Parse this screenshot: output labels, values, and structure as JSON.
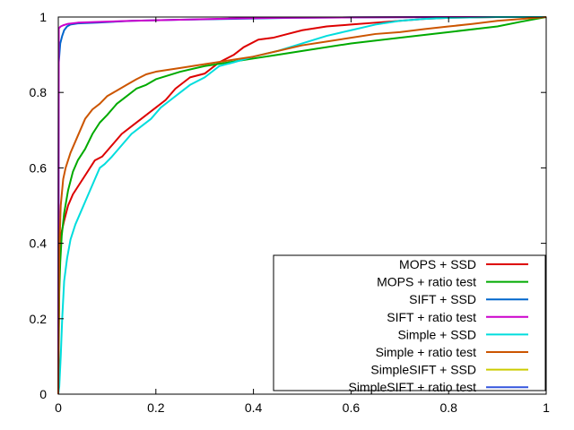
{
  "chart_data": {
    "type": "line",
    "title": "",
    "xlabel": "",
    "ylabel": "",
    "xlim": [
      0,
      1
    ],
    "ylim": [
      0,
      1
    ],
    "xticks": [
      {
        "value": 0,
        "label": "0"
      },
      {
        "value": 0.2,
        "label": "0.2"
      },
      {
        "value": 0.4,
        "label": "0.4"
      },
      {
        "value": 0.6,
        "label": "0.6"
      },
      {
        "value": 0.8,
        "label": "0.8"
      },
      {
        "value": 1,
        "label": "1"
      }
    ],
    "yticks": [
      {
        "value": 0,
        "label": "0"
      },
      {
        "value": 0.2,
        "label": "0.2"
      },
      {
        "value": 0.4,
        "label": "0.4"
      },
      {
        "value": 0.6,
        "label": "0.6"
      },
      {
        "value": 0.8,
        "label": "0.8"
      },
      {
        "value": 1,
        "label": "1"
      }
    ],
    "grid": false,
    "legend_position": "bottom-right",
    "series": [
      {
        "name": "MOPS + SSD",
        "color": "#dd0000",
        "points": [
          [
            0,
            0
          ],
          [
            0.002,
            0.38
          ],
          [
            0.005,
            0.42
          ],
          [
            0.012,
            0.46
          ],
          [
            0.02,
            0.5
          ],
          [
            0.03,
            0.53
          ],
          [
            0.045,
            0.56
          ],
          [
            0.06,
            0.59
          ],
          [
            0.075,
            0.62
          ],
          [
            0.09,
            0.63
          ],
          [
            0.11,
            0.66
          ],
          [
            0.13,
            0.69
          ],
          [
            0.15,
            0.71
          ],
          [
            0.17,
            0.73
          ],
          [
            0.2,
            0.76
          ],
          [
            0.22,
            0.78
          ],
          [
            0.24,
            0.81
          ],
          [
            0.27,
            0.84
          ],
          [
            0.3,
            0.85
          ],
          [
            0.33,
            0.88
          ],
          [
            0.36,
            0.9
          ],
          [
            0.38,
            0.92
          ],
          [
            0.41,
            0.94
          ],
          [
            0.44,
            0.945
          ],
          [
            0.47,
            0.955
          ],
          [
            0.5,
            0.965
          ],
          [
            0.55,
            0.975
          ],
          [
            0.6,
            0.98
          ],
          [
            0.65,
            0.985
          ],
          [
            0.7,
            0.99
          ],
          [
            0.75,
            0.995
          ],
          [
            0.8,
            0.998
          ],
          [
            0.9,
            1.0
          ],
          [
            1.0,
            1.0
          ]
        ]
      },
      {
        "name": "MOPS + ratio test",
        "color": "#00aa00",
        "points": [
          [
            0,
            0
          ],
          [
            0.002,
            0.27
          ],
          [
            0.004,
            0.35
          ],
          [
            0.007,
            0.42
          ],
          [
            0.012,
            0.48
          ],
          [
            0.02,
            0.54
          ],
          [
            0.03,
            0.59
          ],
          [
            0.04,
            0.62
          ],
          [
            0.055,
            0.65
          ],
          [
            0.07,
            0.69
          ],
          [
            0.085,
            0.72
          ],
          [
            0.1,
            0.74
          ],
          [
            0.12,
            0.77
          ],
          [
            0.14,
            0.79
          ],
          [
            0.16,
            0.81
          ],
          [
            0.18,
            0.82
          ],
          [
            0.2,
            0.835
          ],
          [
            0.25,
            0.855
          ],
          [
            0.3,
            0.87
          ],
          [
            0.35,
            0.88
          ],
          [
            0.4,
            0.89
          ],
          [
            0.45,
            0.9
          ],
          [
            0.5,
            0.91
          ],
          [
            0.6,
            0.93
          ],
          [
            0.7,
            0.945
          ],
          [
            0.8,
            0.96
          ],
          [
            0.9,
            0.975
          ],
          [
            0.95,
            0.988
          ],
          [
            1.0,
            1.0
          ]
        ]
      },
      {
        "name": "SIFT + SSD",
        "color": "#0066cc",
        "points": [
          [
            0,
            0
          ],
          [
            0.001,
            0.88
          ],
          [
            0.004,
            0.93
          ],
          [
            0.008,
            0.95
          ],
          [
            0.012,
            0.965
          ],
          [
            0.018,
            0.975
          ],
          [
            0.025,
            0.98
          ],
          [
            0.04,
            0.983
          ],
          [
            0.08,
            0.985
          ],
          [
            0.15,
            0.99
          ],
          [
            0.25,
            0.993
          ],
          [
            0.35,
            0.995
          ],
          [
            0.48,
            0.998
          ],
          [
            0.6,
            0.999
          ],
          [
            0.8,
            1.0
          ],
          [
            1.0,
            1.0
          ]
        ]
      },
      {
        "name": "SIFT + ratio test",
        "color": "#cc00cc",
        "points": [
          [
            0,
            0
          ],
          [
            0.001,
            0.97
          ],
          [
            0.005,
            0.975
          ],
          [
            0.01,
            0.978
          ],
          [
            0.02,
            0.982
          ],
          [
            0.04,
            0.985
          ],
          [
            0.08,
            0.987
          ],
          [
            0.15,
            0.99
          ],
          [
            0.25,
            0.993
          ],
          [
            0.35,
            0.996
          ],
          [
            0.45,
            0.998
          ],
          [
            0.6,
            0.999
          ],
          [
            0.8,
            1.0
          ],
          [
            1.0,
            1.0
          ]
        ]
      },
      {
        "name": "Simple + SSD",
        "color": "#00dddd",
        "points": [
          [
            0,
            0
          ],
          [
            0.002,
            0.02
          ],
          [
            0.005,
            0.1
          ],
          [
            0.008,
            0.2
          ],
          [
            0.012,
            0.3
          ],
          [
            0.018,
            0.36
          ],
          [
            0.025,
            0.41
          ],
          [
            0.035,
            0.45
          ],
          [
            0.045,
            0.48
          ],
          [
            0.055,
            0.51
          ],
          [
            0.065,
            0.54
          ],
          [
            0.075,
            0.57
          ],
          [
            0.085,
            0.6
          ],
          [
            0.095,
            0.61
          ],
          [
            0.11,
            0.63
          ],
          [
            0.13,
            0.66
          ],
          [
            0.15,
            0.69
          ],
          [
            0.17,
            0.71
          ],
          [
            0.19,
            0.73
          ],
          [
            0.21,
            0.76
          ],
          [
            0.23,
            0.78
          ],
          [
            0.25,
            0.8
          ],
          [
            0.27,
            0.82
          ],
          [
            0.3,
            0.84
          ],
          [
            0.33,
            0.87
          ],
          [
            0.36,
            0.88
          ],
          [
            0.4,
            0.895
          ],
          [
            0.45,
            0.91
          ],
          [
            0.5,
            0.93
          ],
          [
            0.55,
            0.95
          ],
          [
            0.6,
            0.965
          ],
          [
            0.65,
            0.98
          ],
          [
            0.7,
            0.99
          ],
          [
            0.75,
            0.995
          ],
          [
            0.8,
            0.998
          ],
          [
            0.9,
            1.0
          ],
          [
            1.0,
            1.0
          ]
        ]
      },
      {
        "name": "Simple + ratio test",
        "color": "#cc5500",
        "points": [
          [
            0,
            0
          ],
          [
            0.002,
            0.38
          ],
          [
            0.005,
            0.5
          ],
          [
            0.01,
            0.57
          ],
          [
            0.015,
            0.6
          ],
          [
            0.025,
            0.64
          ],
          [
            0.035,
            0.67
          ],
          [
            0.045,
            0.7
          ],
          [
            0.055,
            0.73
          ],
          [
            0.07,
            0.755
          ],
          [
            0.085,
            0.77
          ],
          [
            0.1,
            0.79
          ],
          [
            0.12,
            0.805
          ],
          [
            0.14,
            0.82
          ],
          [
            0.16,
            0.835
          ],
          [
            0.18,
            0.848
          ],
          [
            0.2,
            0.855
          ],
          [
            0.25,
            0.865
          ],
          [
            0.3,
            0.875
          ],
          [
            0.35,
            0.885
          ],
          [
            0.4,
            0.895
          ],
          [
            0.45,
            0.91
          ],
          [
            0.5,
            0.925
          ],
          [
            0.55,
            0.935
          ],
          [
            0.6,
            0.945
          ],
          [
            0.65,
            0.955
          ],
          [
            0.7,
            0.96
          ],
          [
            0.75,
            0.968
          ],
          [
            0.8,
            0.975
          ],
          [
            0.85,
            0.982
          ],
          [
            0.9,
            0.99
          ],
          [
            0.95,
            0.995
          ],
          [
            1.0,
            1.0
          ]
        ]
      },
      {
        "name": "SimpleSIFT + SSD",
        "color": "#cccc00",
        "points": []
      },
      {
        "name": "SimpleSIFT + ratio test",
        "color": "#3355dd",
        "points": []
      }
    ]
  }
}
